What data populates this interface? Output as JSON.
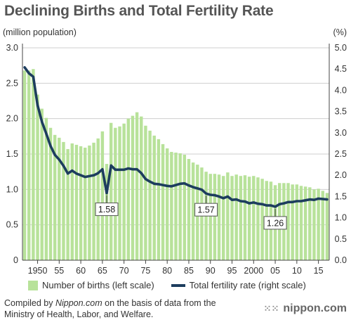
{
  "title": "Declining Births and Total Fertility Rate",
  "left_unit": "(million population)",
  "right_unit": "(%)",
  "legend": {
    "births": "Number of births (left scale)",
    "tfr": "Total fertility rate (right scale)"
  },
  "source": {
    "prefix": "Compiled by ",
    "site": "Nippon.com",
    "suffix": " on the basis of data from the",
    "line2": "Ministry of Health, Labor, and Welfare."
  },
  "brand": {
    "mark": "⁙⁙",
    "name": "nippon.com"
  },
  "colors": {
    "bars": "#b8e29a",
    "line": "#1d3d5e",
    "grid": "#cfcfcf"
  },
  "chart_data": {
    "type": "bar",
    "x": [
      1947,
      1948,
      1949,
      1950,
      1951,
      1952,
      1953,
      1954,
      1955,
      1956,
      1957,
      1958,
      1959,
      1960,
      1961,
      1962,
      1963,
      1964,
      1965,
      1966,
      1967,
      1968,
      1969,
      1970,
      1971,
      1972,
      1973,
      1974,
      1975,
      1976,
      1977,
      1978,
      1979,
      1980,
      1981,
      1982,
      1983,
      1984,
      1985,
      1986,
      1987,
      1988,
      1989,
      1990,
      1991,
      1992,
      1993,
      1994,
      1995,
      1996,
      1997,
      1998,
      1999,
      2000,
      2001,
      2002,
      2003,
      2004,
      2005,
      2006,
      2007,
      2008,
      2009,
      2010,
      2011,
      2012,
      2013,
      2014,
      2015,
      2016,
      2017
    ],
    "x_tick_labels": [
      "1950",
      "55",
      "60",
      "65",
      "70",
      "75",
      "80",
      "85",
      "90",
      "95",
      "2000",
      "05",
      "10",
      "15"
    ],
    "x_tick_values": [
      1950,
      1955,
      1960,
      1965,
      1970,
      1975,
      1980,
      1985,
      1990,
      1995,
      2000,
      2005,
      2010,
      2015
    ],
    "series": [
      {
        "name": "Number of births (left scale)",
        "type": "bar",
        "axis": "left",
        "values": [
          2.68,
          2.68,
          2.7,
          2.34,
          2.14,
          2.01,
          1.87,
          1.77,
          1.73,
          1.67,
          1.57,
          1.65,
          1.63,
          1.61,
          1.59,
          1.62,
          1.66,
          1.72,
          1.82,
          1.36,
          1.94,
          1.87,
          1.89,
          1.93,
          2.0,
          2.04,
          2.09,
          2.03,
          1.9,
          1.83,
          1.76,
          1.71,
          1.64,
          1.58,
          1.53,
          1.52,
          1.51,
          1.49,
          1.43,
          1.38,
          1.35,
          1.31,
          1.25,
          1.22,
          1.22,
          1.21,
          1.19,
          1.24,
          1.19,
          1.21,
          1.19,
          1.2,
          1.18,
          1.19,
          1.17,
          1.15,
          1.12,
          1.11,
          1.06,
          1.09,
          1.09,
          1.09,
          1.07,
          1.07,
          1.05,
          1.04,
          1.03,
          1.0,
          1.01,
          0.98,
          0.95
        ]
      },
      {
        "name": "Total fertility rate (right scale)",
        "type": "line",
        "axis": "right",
        "values": [
          4.54,
          4.4,
          4.32,
          3.65,
          3.26,
          2.98,
          2.69,
          2.48,
          2.37,
          2.22,
          2.04,
          2.11,
          2.04,
          2.0,
          1.96,
          1.98,
          2.0,
          2.05,
          2.14,
          1.58,
          2.23,
          2.13,
          2.13,
          2.13,
          2.16,
          2.14,
          2.14,
          2.05,
          1.91,
          1.85,
          1.8,
          1.79,
          1.77,
          1.75,
          1.74,
          1.77,
          1.8,
          1.81,
          1.76,
          1.72,
          1.69,
          1.66,
          1.57,
          1.54,
          1.53,
          1.5,
          1.46,
          1.5,
          1.42,
          1.43,
          1.39,
          1.38,
          1.34,
          1.36,
          1.33,
          1.32,
          1.29,
          1.29,
          1.26,
          1.32,
          1.34,
          1.37,
          1.37,
          1.39,
          1.39,
          1.41,
          1.43,
          1.42,
          1.45,
          1.44,
          1.43
        ]
      }
    ],
    "annotations": [
      {
        "x": 1966,
        "label": "1.58"
      },
      {
        "x": 1989,
        "label": "1.57"
      },
      {
        "x": 2005,
        "label": "1.26"
      }
    ],
    "ylim_left": [
      0,
      3.0
    ],
    "ylim_right": [
      0,
      5.0
    ],
    "yticks_left": [
      "0",
      "0.5",
      "1.0",
      "1.5",
      "2.0",
      "2.5",
      "3.0"
    ],
    "yticks_right": [
      "0.0",
      "0.5",
      "1.0",
      "1.5",
      "2.0",
      "2.5",
      "3.0",
      "3.5",
      "4.0",
      "4.5",
      "5.0"
    ],
    "grid": true,
    "legend_position": "bottom"
  }
}
